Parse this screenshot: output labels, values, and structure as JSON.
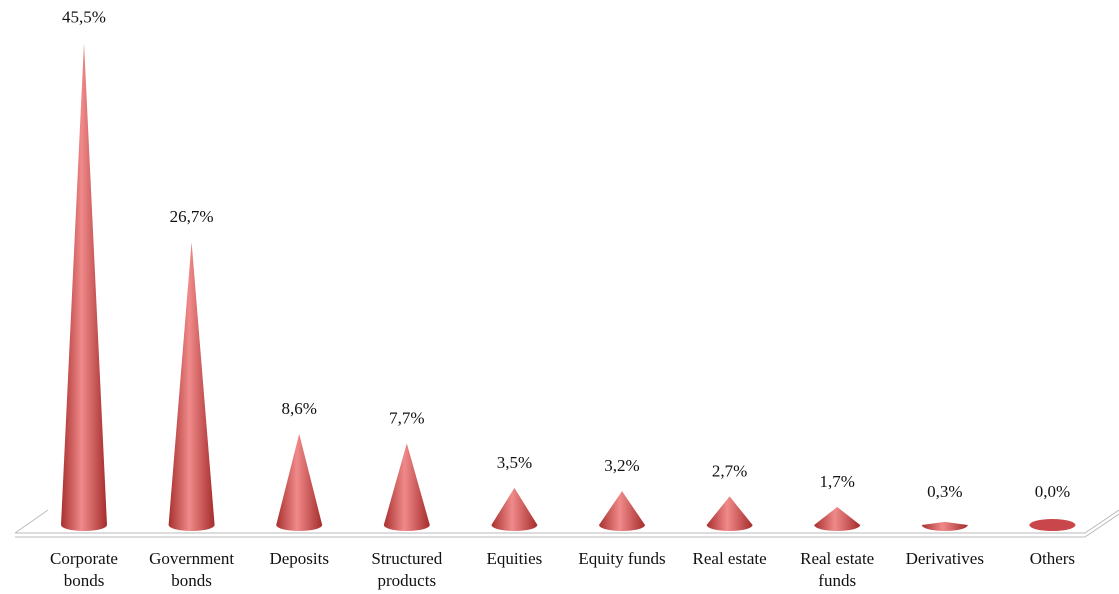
{
  "chart_data": {
    "type": "cone",
    "categories": [
      "Corporate bonds",
      "Government bonds",
      "Deposits",
      "Structured products",
      "Equities",
      "Equity funds",
      "Real estate",
      "Real estate funds",
      "Derivatives",
      "Others"
    ],
    "values": [
      45.5,
      26.7,
      8.6,
      7.7,
      3.5,
      3.2,
      2.7,
      1.7,
      0.3,
      0.0
    ],
    "value_labels": [
      "45,5%",
      "26,7%",
      "8,6%",
      "7,7%",
      "3,5%",
      "3,2%",
      "2,7%",
      "1,7%",
      "0,3%",
      "0,0%"
    ],
    "color": "#c9474a"
  }
}
